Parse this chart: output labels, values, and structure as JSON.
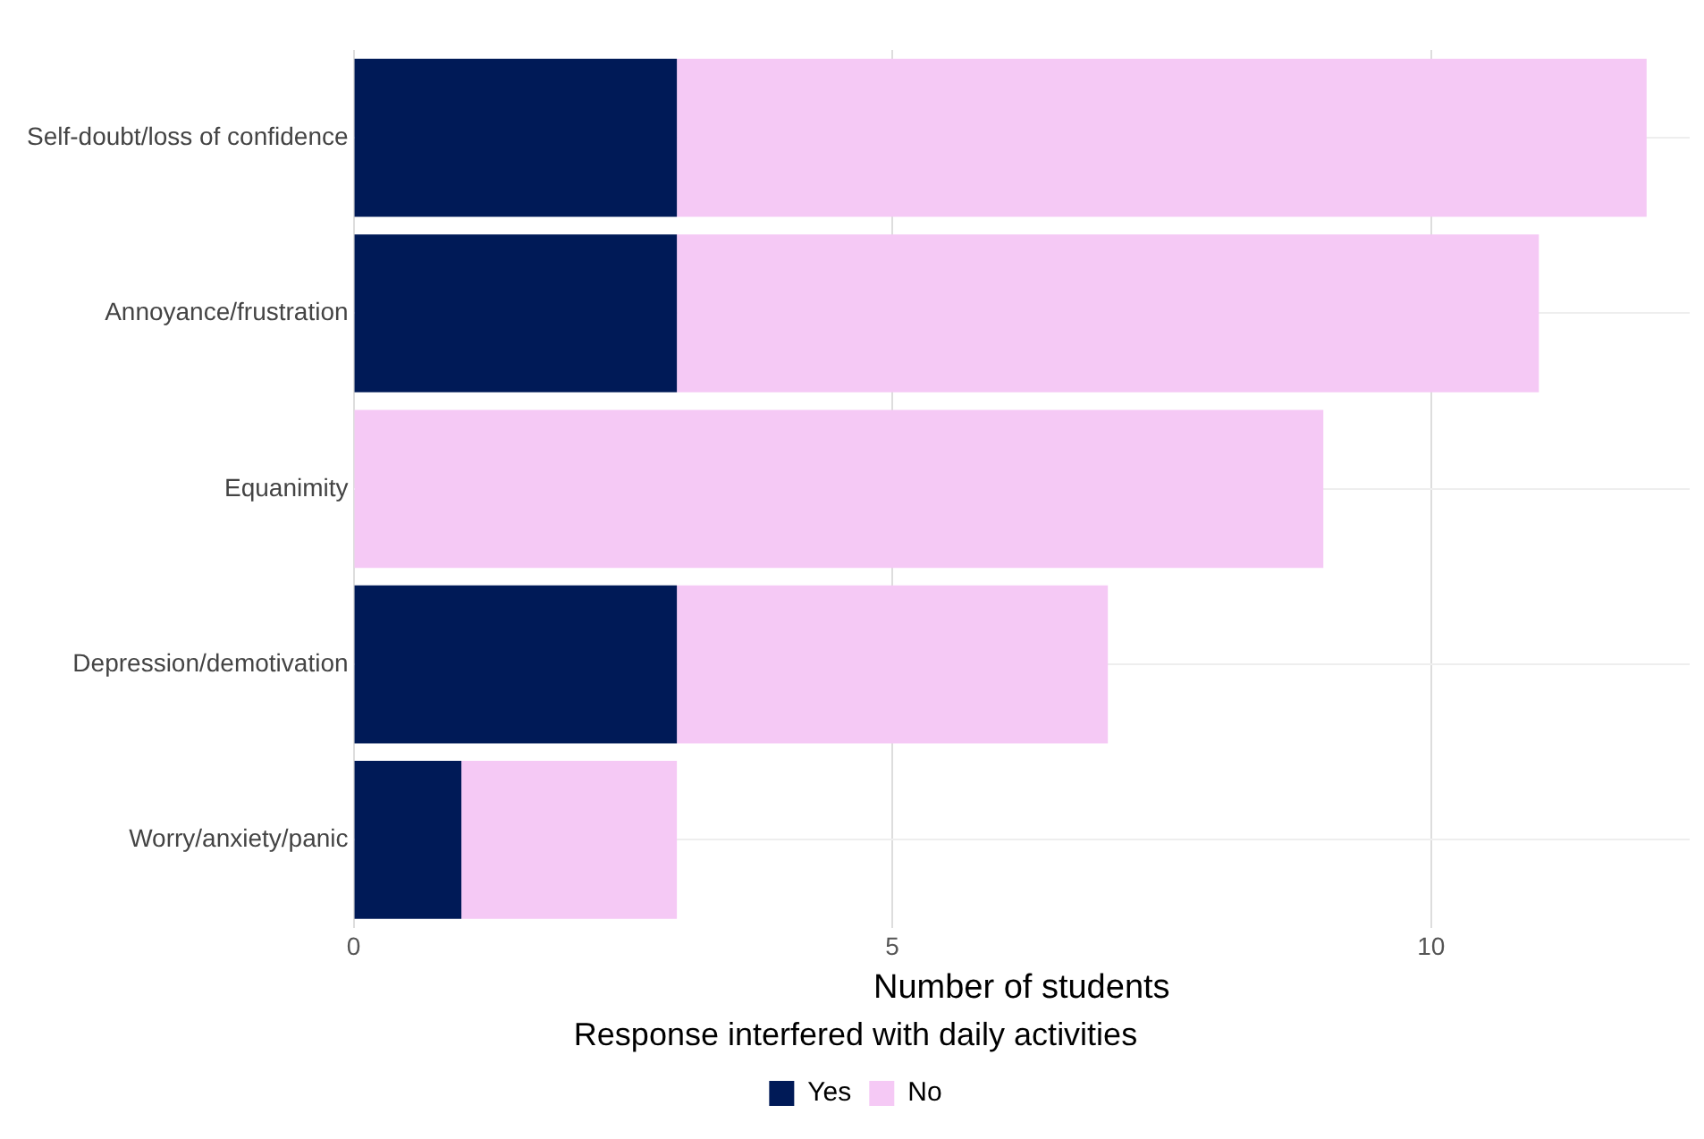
{
  "chart_data": {
    "type": "bar",
    "orientation": "horizontal",
    "stacked": true,
    "categories": [
      "Self-doubt/loss of confidence",
      "Annoyance/frustration",
      "Equanimity",
      "Depression/demotivation",
      "Worry/anxiety/panic"
    ],
    "series": [
      {
        "name": "Yes",
        "color": "#001a57",
        "values": [
          3,
          3,
          0,
          3,
          1
        ]
      },
      {
        "name": "No",
        "color": "#f5c9f5",
        "values": [
          9,
          8,
          9,
          4,
          2
        ]
      }
    ],
    "xlabel": "Number of students",
    "legend_title": "Response interfered with daily activities",
    "legend": "bottom",
    "xlim": [
      0,
      12.4
    ],
    "xticks": [
      0,
      5,
      10
    ],
    "grid": true
  }
}
